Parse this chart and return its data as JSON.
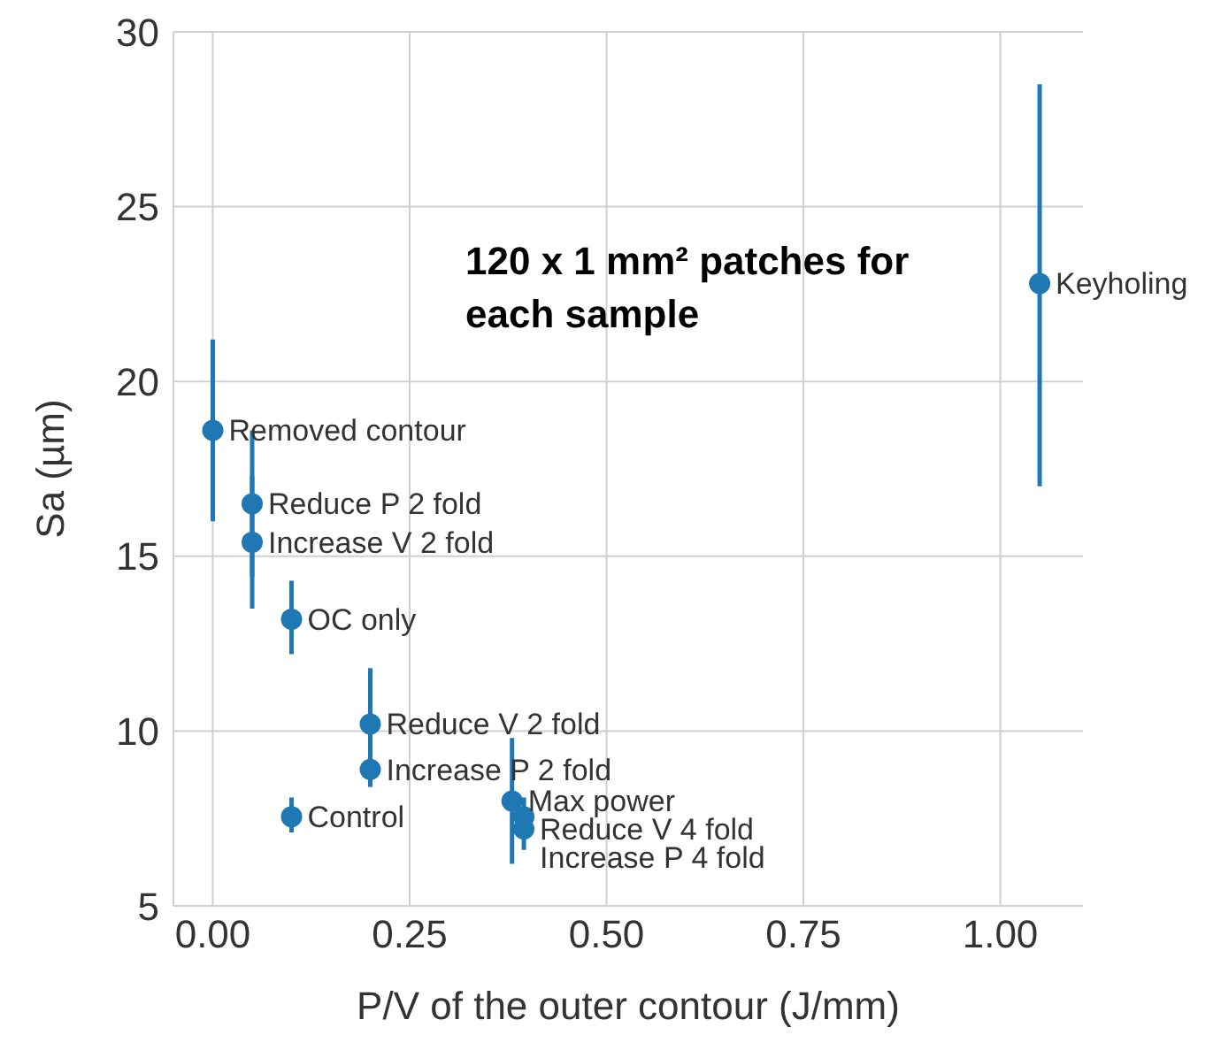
{
  "chart_data": {
    "type": "scatter",
    "xlabel": "P/V of the outer contour (J/mm)",
    "ylabel": "Sa (µm)",
    "x": [
      0,
      0.05,
      0.05,
      0.1,
      0.2,
      0.2,
      0.1,
      0.38,
      0.395,
      0.395,
      1.05
    ],
    "series": [
      {
        "color": "#1f77b4",
        "values": [
          18.6,
          16.5,
          15.4,
          13.2,
          10.2,
          8.9,
          7.55,
          8.0,
          7.55,
          7.2,
          22.8
        ],
        "errors": [
          [
            16.0,
            21.2
          ],
          [
            14.4,
            18.6
          ],
          [
            13.5,
            17.3
          ],
          [
            12.2,
            14.3
          ],
          [
            8.6,
            11.8
          ],
          [
            8.4,
            9.4
          ],
          [
            7.1,
            8.1
          ],
          [
            6.2,
            9.8
          ],
          [
            7.0,
            8.1
          ],
          [
            6.6,
            7.8
          ],
          [
            17.0,
            28.5
          ]
        ]
      }
    ],
    "xlim": [
      -0.05,
      1.105
    ],
    "xticks": [
      {
        "value": 0,
        "label": "0.00"
      },
      {
        "value": 0.25,
        "label": "0.25"
      },
      {
        "value": 0.5,
        "label": "0.50"
      },
      {
        "value": 0.75,
        "label": "0.75"
      },
      {
        "value": 1,
        "label": "1.00"
      }
    ],
    "ylim": [
      5,
      30
    ],
    "yticks": [
      5,
      10,
      15,
      20,
      25,
      30
    ],
    "grid": true,
    "marker": "circle",
    "legend": false,
    "annotations": [
      "120 x 1 mm² patches for each sample",
      {
        "text": "Removed contour",
        "x": 0,
        "y": 18.6
      },
      {
        "text": "Reduce P 2 fold",
        "x": 0.05,
        "y": 16.5
      },
      {
        "text": "Increase V 2 fold",
        "x": 0.05,
        "y": 15.4
      },
      {
        "text": "OC only",
        "x": 0.1,
        "y": 13.2
      },
      {
        "text": "Reduce V 2 fold",
        "x": 0.2,
        "y": 10.2
      },
      {
        "text": "Increase P 2 fold",
        "x": 0.2,
        "y": 8.9
      },
      {
        "text": "Control",
        "x": 0.1,
        "y": 7.55
      },
      {
        "text": "Max power",
        "x": 0.38,
        "y": 8.0
      },
      {
        "text": "Reduce V 4 fold",
        "x": 0.395,
        "y": 7.55
      },
      {
        "text": "Increase P 4 fold",
        "x": 0.395,
        "y": 7.2
      },
      {
        "text": "Keyholing",
        "x": 1.05,
        "y": 22.8
      }
    ]
  }
}
